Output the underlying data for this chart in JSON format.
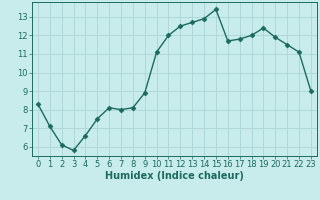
{
  "x": [
    0,
    1,
    2,
    3,
    4,
    5,
    6,
    7,
    8,
    9,
    10,
    11,
    12,
    13,
    14,
    15,
    16,
    17,
    18,
    19,
    20,
    21,
    22,
    23
  ],
  "y": [
    8.3,
    7.1,
    6.1,
    5.8,
    6.6,
    7.5,
    8.1,
    8.0,
    8.1,
    8.9,
    11.1,
    12.0,
    12.5,
    12.7,
    12.9,
    13.4,
    11.7,
    11.8,
    12.0,
    12.4,
    11.9,
    11.5,
    11.1,
    9.0
  ],
  "line_color": "#1a6b5e",
  "marker": "D",
  "marker_size": 2.5,
  "bg_color": "#c8ecec",
  "grid_color": "#b0d8d8",
  "xlabel": "Humidex (Indice chaleur)",
  "xlabel_fontsize": 7,
  "tick_fontsize": 6,
  "ylim": [
    5.5,
    13.8
  ],
  "xlim": [
    -0.5,
    23.5
  ],
  "yticks": [
    6,
    7,
    8,
    9,
    10,
    11,
    12,
    13
  ],
  "xticks": [
    0,
    1,
    2,
    3,
    4,
    5,
    6,
    7,
    8,
    9,
    10,
    11,
    12,
    13,
    14,
    15,
    16,
    17,
    18,
    19,
    20,
    21,
    22,
    23
  ]
}
